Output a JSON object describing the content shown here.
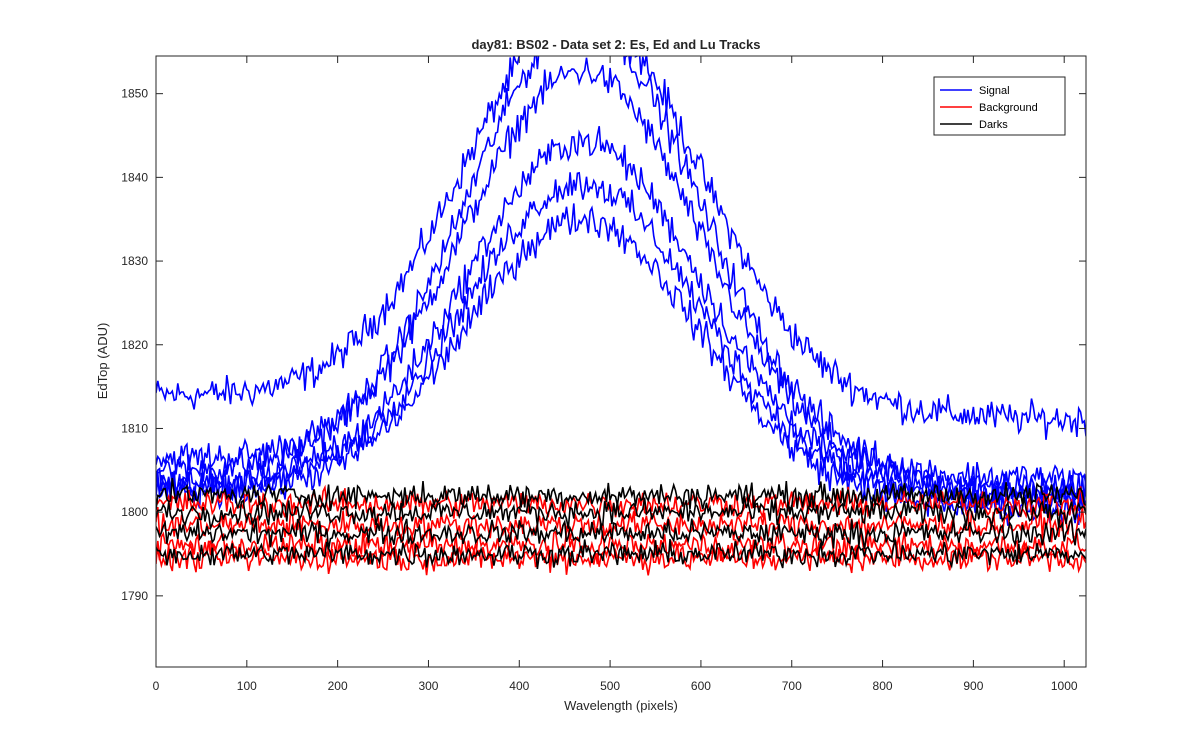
{
  "chart_data": {
    "type": "line",
    "title": "day81: BS02 - Data set 2: Es, Ed and Lu Tracks",
    "xlabel": "Wavelength (pixels)",
    "ylabel": "EdTop (ADU)",
    "xlim": [
      0,
      1024
    ],
    "ylim": [
      1781.5,
      1854.5
    ],
    "xticks": [
      0,
      100,
      200,
      300,
      400,
      500,
      600,
      700,
      800,
      900,
      1000
    ],
    "yticks": [
      1790,
      1800,
      1810,
      1820,
      1830,
      1840,
      1850
    ],
    "grid": false,
    "legend_position": "top-right",
    "colors": {
      "Signal": "#0000ff",
      "Background": "#ff0000",
      "Darks": "#000000"
    },
    "point_spacing": 2,
    "series": [
      {
        "name": "Signal",
        "color": "#0000ff",
        "shape": "peak",
        "start": 1814.0,
        "peak": 1858.0,
        "end": 1811.0,
        "noise": 1.2
      },
      {
        "name": "",
        "color": "#0000ff",
        "shape": "peak",
        "start": 1806.5,
        "peak": 1851.0,
        "end": 1802.5,
        "noise": 1.2
      },
      {
        "name": "",
        "color": "#0000ff",
        "shape": "peak",
        "start": 1805.0,
        "peak": 1855.0,
        "end": 1804.0,
        "noise": 1.2
      },
      {
        "name": "",
        "color": "#0000ff",
        "shape": "peak",
        "start": 1803.0,
        "peak": 1841.5,
        "end": 1802.5,
        "noise": 1.2
      },
      {
        "name": "",
        "color": "#0000ff",
        "shape": "peak",
        "start": 1803.5,
        "peak": 1837.5,
        "end": 1801.5,
        "noise": 1.2
      },
      {
        "name": "",
        "color": "#0000ff",
        "shape": "peak",
        "start": 1802.5,
        "peak": 1833.5,
        "end": 1800.5,
        "noise": 1.2
      },
      {
        "name": "Background",
        "color": "#ff0000",
        "shape": "flat",
        "level": 1801.0,
        "noise": 1.0
      },
      {
        "name": "",
        "color": "#ff0000",
        "shape": "flat",
        "level": 1798.5,
        "noise": 1.0
      },
      {
        "name": "",
        "color": "#ff0000",
        "shape": "flat",
        "level": 1796.0,
        "noise": 1.0
      },
      {
        "name": "",
        "color": "#ff0000",
        "shape": "flat",
        "level": 1794.5,
        "noise": 1.0
      },
      {
        "name": "Darks",
        "color": "#000000",
        "shape": "flat",
        "level": 1802.0,
        "noise": 0.9
      },
      {
        "name": "",
        "color": "#000000",
        "shape": "flat",
        "level": 1800.0,
        "noise": 0.9
      },
      {
        "name": "",
        "color": "#000000",
        "shape": "flat",
        "level": 1797.5,
        "noise": 0.9
      },
      {
        "name": "",
        "color": "#000000",
        "shape": "flat",
        "level": 1795.0,
        "noise": 0.9
      }
    ],
    "legend": [
      {
        "label": "Signal",
        "color": "#0000ff"
      },
      {
        "label": "Background",
        "color": "#ff0000"
      },
      {
        "label": "Darks",
        "color": "#000000"
      }
    ]
  }
}
